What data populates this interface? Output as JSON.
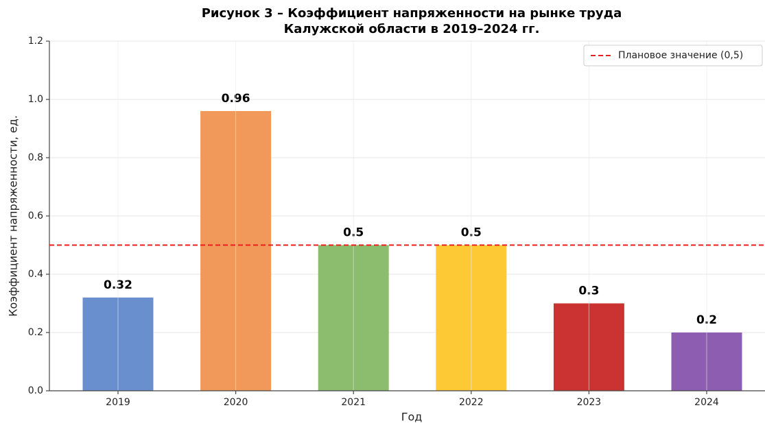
{
  "chart_data": {
    "type": "bar",
    "title": [
      "Рисунок 3 – Коэффициент напряженности на рынке труда",
      "Калужской области в 2019–2024 гг."
    ],
    "xlabel": "Год",
    "ylabel": "Коэффициент напряженности, ед.",
    "categories": [
      "2019",
      "2020",
      "2021",
      "2022",
      "2023",
      "2024"
    ],
    "values": [
      0.32,
      0.96,
      0.5,
      0.5,
      0.3,
      0.2
    ],
    "colors": [
      "#6a8fce",
      "#f0995a",
      "#8cbd6e",
      "#fdca36",
      "#cb3333",
      "#8c5db0"
    ],
    "ylim": [
      0,
      1.2
    ],
    "yticks": [
      {
        "value": 0,
        "label": "0.0"
      },
      0.2,
      0.4,
      0.6,
      0.8,
      {
        "value": 1,
        "label": "1.0"
      },
      1.2
    ],
    "grid": true,
    "reference_line": {
      "value": 0.5,
      "label": "Плановое значение (0,5)",
      "color": "#ee1c1c"
    },
    "legend": "upper right"
  }
}
